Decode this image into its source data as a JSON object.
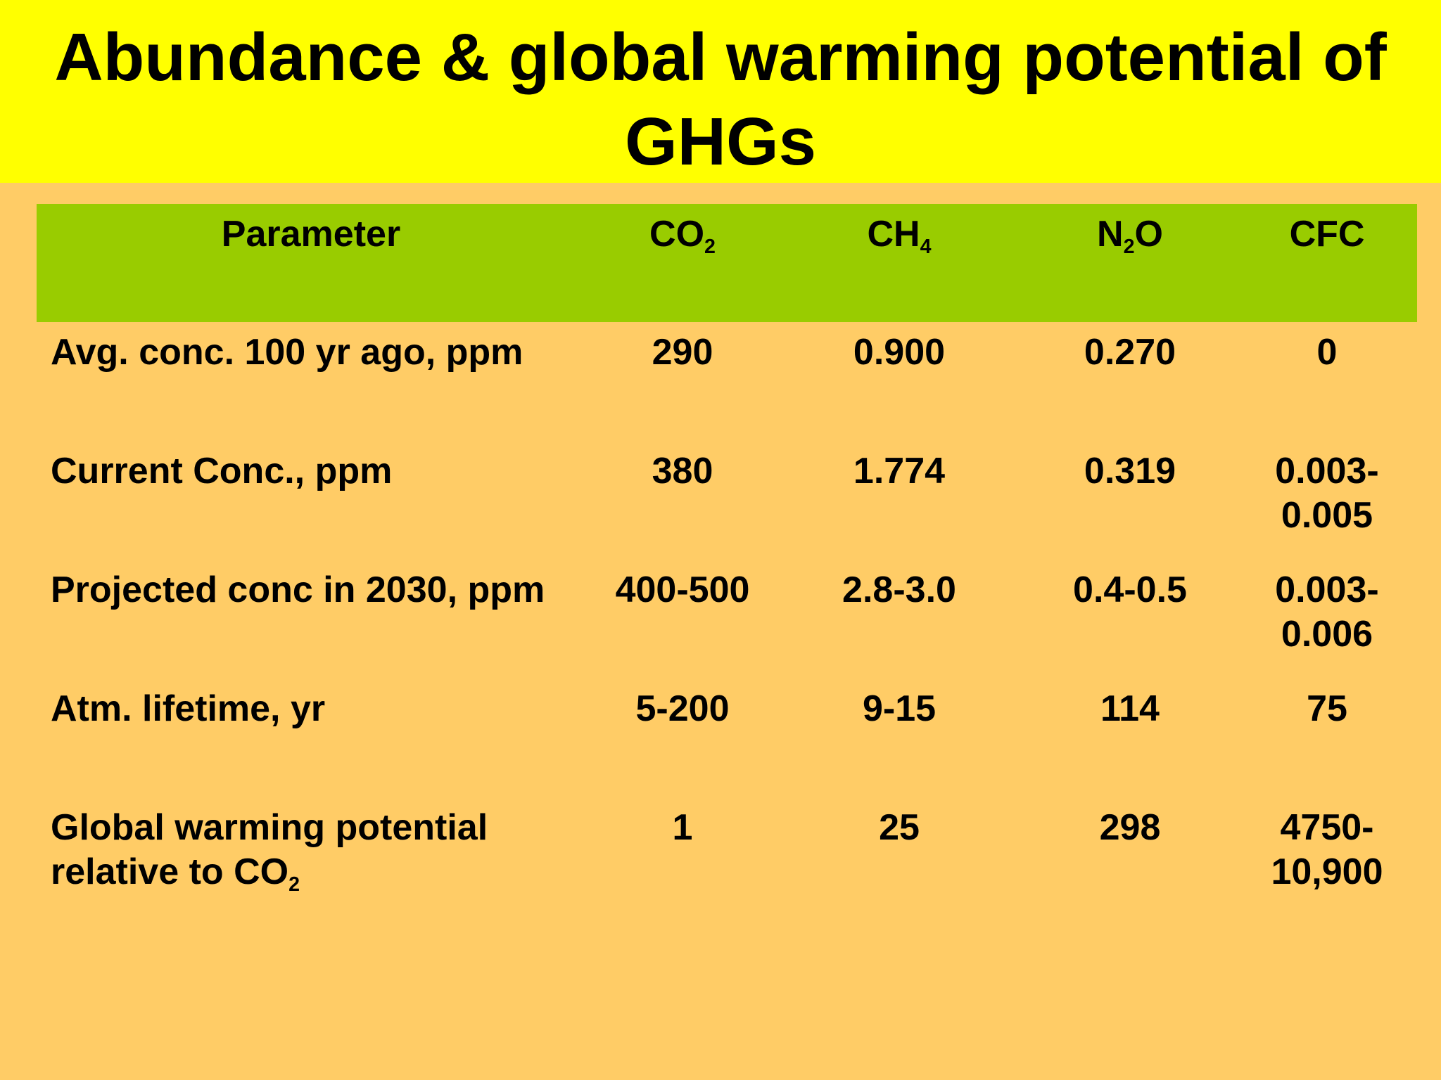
{
  "title": "Abundance & global warming potential of GHGs",
  "table": {
    "headers": {
      "parameter": "Parameter",
      "co2": {
        "base": "CO",
        "sub": "2"
      },
      "ch4": {
        "base": "CH",
        "sub": "4"
      },
      "n2o": {
        "base": "N",
        "sub": "2",
        "tail": "O"
      },
      "cfc": "CFC"
    },
    "rows": [
      {
        "label": "Avg. conc. 100 yr ago, ppm",
        "co2": "290",
        "ch4": "0.900",
        "n2o": "0.270",
        "cfc": "0"
      },
      {
        "label": "Current Conc., ppm",
        "co2": "380",
        "ch4": "1.774",
        "n2o": "0.319",
        "cfc": "0.003-0.005"
      },
      {
        "label": "Projected conc in 2030, ppm",
        "co2": "400-500",
        "ch4": "2.8-3.0",
        "n2o": "0.4-0.5",
        "cfc": "0.003-0.006"
      },
      {
        "label": "Atm. lifetime, yr",
        "co2": "5-200",
        "ch4": "9-15",
        "n2o": "114",
        "cfc": "75"
      },
      {
        "label": "Global warming potential relative to CO",
        "label_sub": "2",
        "co2": "1",
        "ch4": "25",
        "n2o": "298",
        "cfc": "4750-10,900"
      }
    ]
  },
  "colors": {
    "background": "#ffcc66",
    "title_band": "#ffff00",
    "header_band": "#99cc00"
  }
}
